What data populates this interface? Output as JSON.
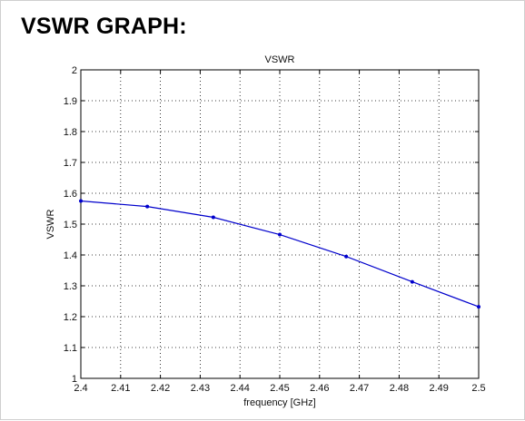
{
  "page": {
    "heading": "VSWR GRAPH:"
  },
  "chart_data": {
    "type": "line",
    "title": "VSWR",
    "xlabel": "frequency [GHz]",
    "ylabel": "VSWR",
    "xlim": [
      2.4,
      2.5
    ],
    "ylim": [
      1,
      2
    ],
    "x_ticks": [
      "2.4",
      "2.41",
      "2.42",
      "2.43",
      "2.44",
      "2.45",
      "2.46",
      "2.47",
      "2.48",
      "2.49",
      "2.5"
    ],
    "y_ticks": [
      "1",
      "1.1",
      "1.2",
      "1.3",
      "1.4",
      "1.5",
      "1.6",
      "1.7",
      "1.8",
      "1.9",
      "2"
    ],
    "grid": true,
    "series": [
      {
        "color": "#0000cc",
        "x": [
          2.4,
          2.4167,
          2.4333,
          2.45,
          2.4667,
          2.4833,
          2.5
        ],
        "values": [
          1.575,
          1.557,
          1.522,
          1.466,
          1.395,
          1.313,
          1.232
        ]
      }
    ]
  }
}
